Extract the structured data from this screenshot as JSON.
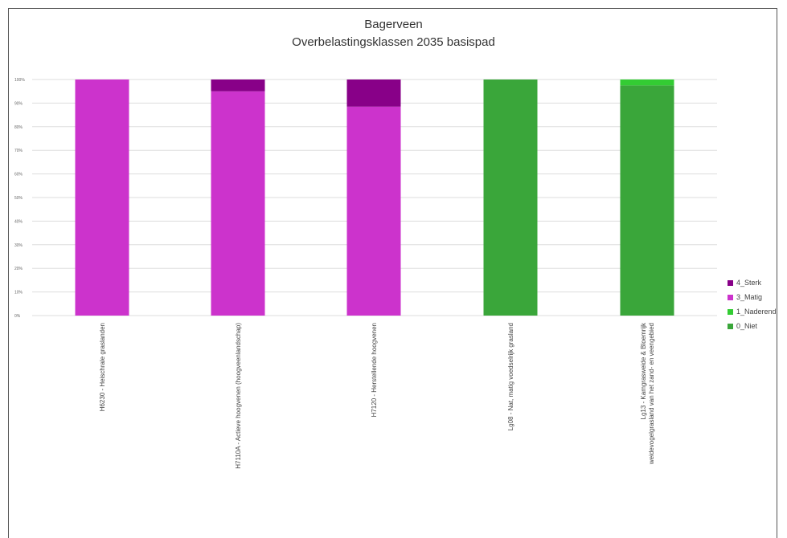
{
  "chart_data": {
    "type": "bar",
    "stacked": true,
    "title": "Bagerveen",
    "subtitle": "Overbelastingsklassen 2035 basispad",
    "categories": [
      "H6230 - Heischrale graslanden",
      "H7110A - Actieve hoogvenen (hoogveenlandschap)",
      "H7120 - Herstellende hoogvenen",
      "Lg08 - Nat, matig voedselrijk grasland",
      "Lg13 - Kamgrasweide & Bloemrijk weidevogelgrasland van het zand- en veengebied"
    ],
    "category_lines": [
      [
        "H6230 - Heischrale graslanden"
      ],
      [
        "H7110A - Actieve hoogvenen (hoogveenlandschap)"
      ],
      [
        "H7120 - Herstellende hoogvenen"
      ],
      [
        "Lg08 - Nat, matig voedselrijk grasland"
      ],
      [
        "Lg13 - Kamgrasweide & Bloemrijk",
        "weidevogelgrasland van het zand- en veengebied"
      ]
    ],
    "series": [
      {
        "name": "0_Niet",
        "color": "#3aa63a",
        "values": [
          0,
          0,
          0,
          100,
          97.5
        ]
      },
      {
        "name": "1_Naderend",
        "color": "#33cc33",
        "values": [
          0,
          0,
          0,
          0,
          2.5
        ]
      },
      {
        "name": "3_Matig",
        "color": "#cc33cc",
        "values": [
          100,
          95,
          88.5,
          0,
          0
        ]
      },
      {
        "name": "4_Sterk",
        "color": "#880088",
        "values": [
          0,
          5,
          11.5,
          0,
          0
        ]
      }
    ],
    "legend_order": [
      "4_Sterk",
      "3_Matig",
      "1_Naderend",
      "0_Niet"
    ],
    "ylim": [
      0,
      100
    ],
    "yticks": [
      "0%",
      "10%",
      "20%",
      "30%",
      "40%",
      "50%",
      "60%",
      "70%",
      "80%",
      "90%",
      "100%"
    ],
    "grid": true,
    "legend_position": "right"
  }
}
